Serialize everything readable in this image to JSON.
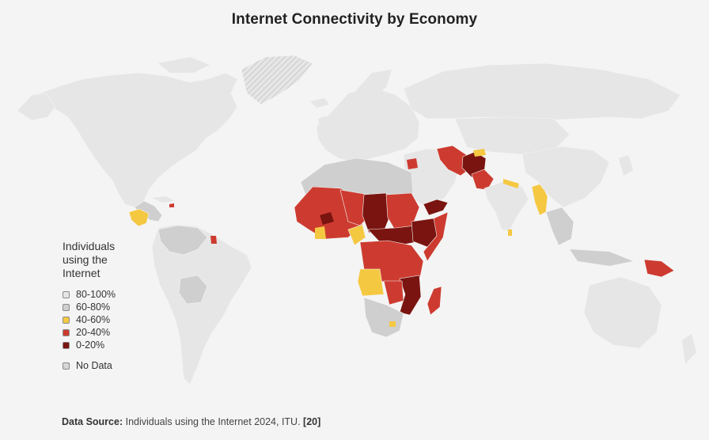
{
  "title": "Internet Connectivity by Economy",
  "legend": {
    "title": "Individuals using the Internet",
    "items": [
      {
        "label": "80-100%",
        "color": "#e6e6e6"
      },
      {
        "label": "60-80%",
        "color": "#cfcfcf"
      },
      {
        "label": "40-60%",
        "color": "#f5c842"
      },
      {
        "label": "20-40%",
        "color": "#cd3b30"
      },
      {
        "label": "0-20%",
        "color": "#7a1410"
      }
    ],
    "no_data_label": "No Data"
  },
  "source": {
    "label": "Data Source:",
    "text": "Individuals using the Internet 2024, ITU.",
    "ref": "[20]"
  }
}
